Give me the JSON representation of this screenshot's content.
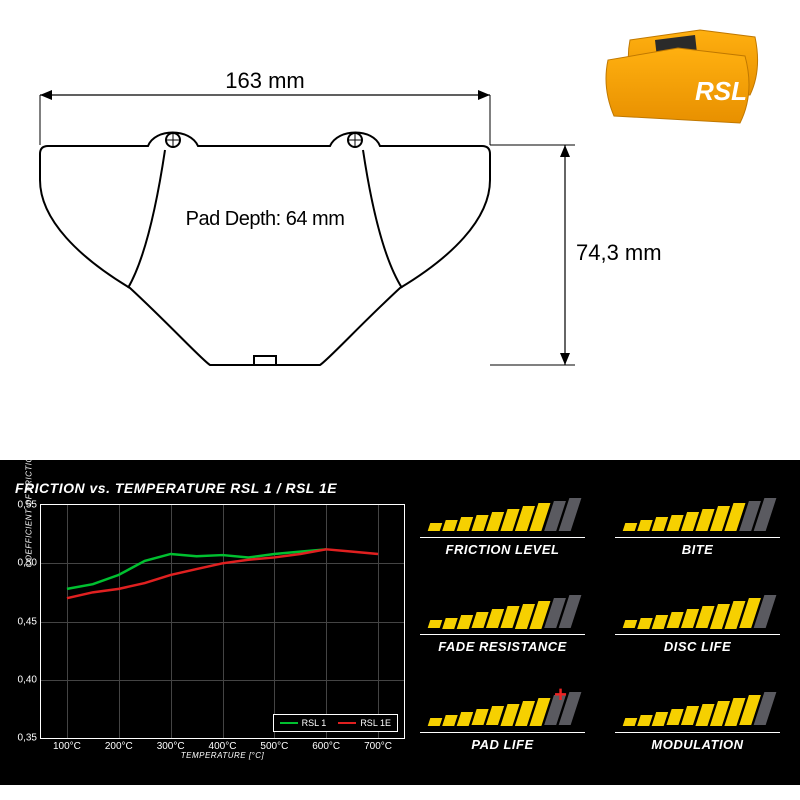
{
  "drawing": {
    "width_label": "163 mm",
    "height_label": "74,3 mm",
    "depth_label": "Pad Depth: 64 mm",
    "stroke": "#000000",
    "stroke_width": 2
  },
  "product_thumb": {
    "body_color": "#f6a800",
    "logo_text": "RSL",
    "logo_color": "#ffffff"
  },
  "chart": {
    "title": "FRICTION vs. TEMPERATURE RSL 1 / RSL 1E",
    "bg": "#000000",
    "border": "#ffffff",
    "grid_color": "#444444",
    "ylabel": "COEFFICIENT OF FRICTION",
    "xlabel": "TEMPERATURE [°C]",
    "ylim": [
      0.35,
      0.55
    ],
    "yticks": [
      0.35,
      0.4,
      0.45,
      0.5,
      0.55
    ],
    "ytick_labels": [
      "0,35",
      "0,40",
      "0,45",
      "0,50",
      "0,55"
    ],
    "xticks": [
      100,
      200,
      300,
      400,
      500,
      600,
      700
    ],
    "xtick_labels": [
      "100°C",
      "200°C",
      "300°C",
      "400°C",
      "500°C",
      "600°C",
      "700°C"
    ],
    "xlim": [
      50,
      750
    ],
    "series": [
      {
        "name": "RSL 1",
        "color": "#00c030",
        "points": [
          [
            100,
            0.478
          ],
          [
            150,
            0.482
          ],
          [
            200,
            0.49
          ],
          [
            250,
            0.502
          ],
          [
            300,
            0.508
          ],
          [
            350,
            0.506
          ],
          [
            400,
            0.507
          ],
          [
            450,
            0.505
          ],
          [
            500,
            0.508
          ],
          [
            550,
            0.51
          ],
          [
            600,
            0.512
          ]
        ]
      },
      {
        "name": "RSL 1E",
        "color": "#e02020",
        "points": [
          [
            100,
            0.47
          ],
          [
            150,
            0.475
          ],
          [
            200,
            0.478
          ],
          [
            250,
            0.483
          ],
          [
            300,
            0.49
          ],
          [
            350,
            0.495
          ],
          [
            400,
            0.5
          ],
          [
            450,
            0.503
          ],
          [
            500,
            0.505
          ],
          [
            550,
            0.508
          ],
          [
            600,
            0.512
          ],
          [
            650,
            0.51
          ],
          [
            700,
            0.508
          ]
        ]
      }
    ]
  },
  "ratings": {
    "bar_count": 10,
    "fill_color": "#f6d000",
    "empty_color": "#5a5a60",
    "items": [
      {
        "label": "FRICTION LEVEL",
        "value": 8,
        "plus": false
      },
      {
        "label": "BITE",
        "value": 8,
        "plus": false
      },
      {
        "label": "FADE RESISTANCE",
        "value": 8,
        "plus": false
      },
      {
        "label": "DISC LIFE",
        "value": 9,
        "plus": false
      },
      {
        "label": "PAD LIFE",
        "value": 8,
        "plus": true
      },
      {
        "label": "MODULATION",
        "value": 9,
        "plus": false
      }
    ]
  }
}
